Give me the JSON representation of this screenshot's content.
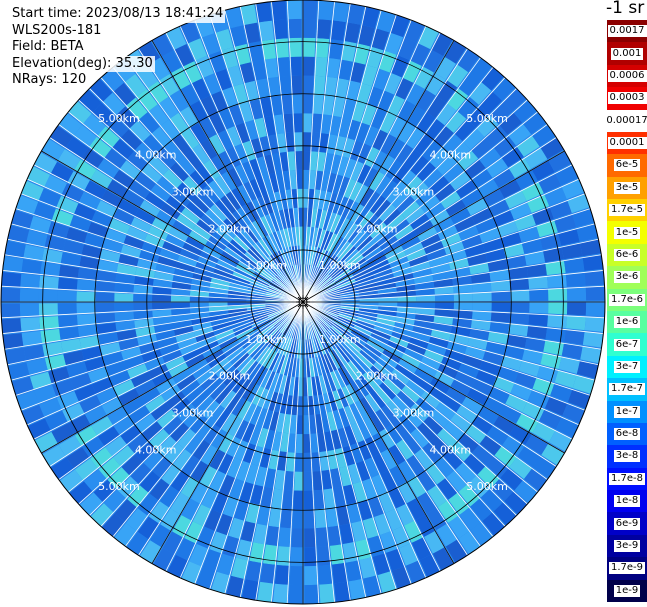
{
  "header": {
    "start_time": "Start time: 2023/08/13 18:41:24",
    "instrument": "WLS200s-181",
    "field": "Field: BETA",
    "elevation": "Elevation(deg): 35.30",
    "nrays": "NRays: 120"
  },
  "colorbar": {
    "unit": "-1 sr",
    "labels": [
      "0.0017",
      "0.001",
      "0.0006",
      "0.0003",
      "0.00017",
      "0.0001",
      "6e-5",
      "3e-5",
      "1.7e-5",
      "1e-5",
      "6e-6",
      "3e-6",
      "1.7e-6",
      "1e-6",
      "6e-7",
      "3e-7",
      "1.7e-7",
      "1e-7",
      "6e-8",
      "3e-8",
      "1.7e-8",
      "1e-8",
      "6e-9",
      "3e-9",
      "1.7e-9",
      "1e-9"
    ],
    "colors": [
      "#8b0000",
      "#b00000",
      "#d40000",
      "#f00000",
      "#ffffff",
      "#ff3000",
      "#ff6a00",
      "#ffa000",
      "#ffd000",
      "#f4ff00",
      "#c8ff28",
      "#a0ff58",
      "#7cff7c",
      "#58ffa0",
      "#30ffd0",
      "#00f0ff",
      "#00c0ff",
      "#0090ff",
      "#0060ff",
      "#0030ff",
      "#0010ff",
      "#0000f0",
      "#0000c8",
      "#0000a0",
      "#000080",
      "#00004a"
    ]
  },
  "ppi": {
    "range_rings": [
      "1.00km",
      "2.00km",
      "3.00km",
      "4.00km",
      "5.00km"
    ],
    "n_rays": 120,
    "max_range_km": 5.8,
    "palette": [
      "#1560d8",
      "#1e78e6",
      "#2a8ef0",
      "#38a4f6",
      "#48b8f4",
      "#2070e0",
      "#1a5ed0",
      "#4cc8ec"
    ]
  }
}
